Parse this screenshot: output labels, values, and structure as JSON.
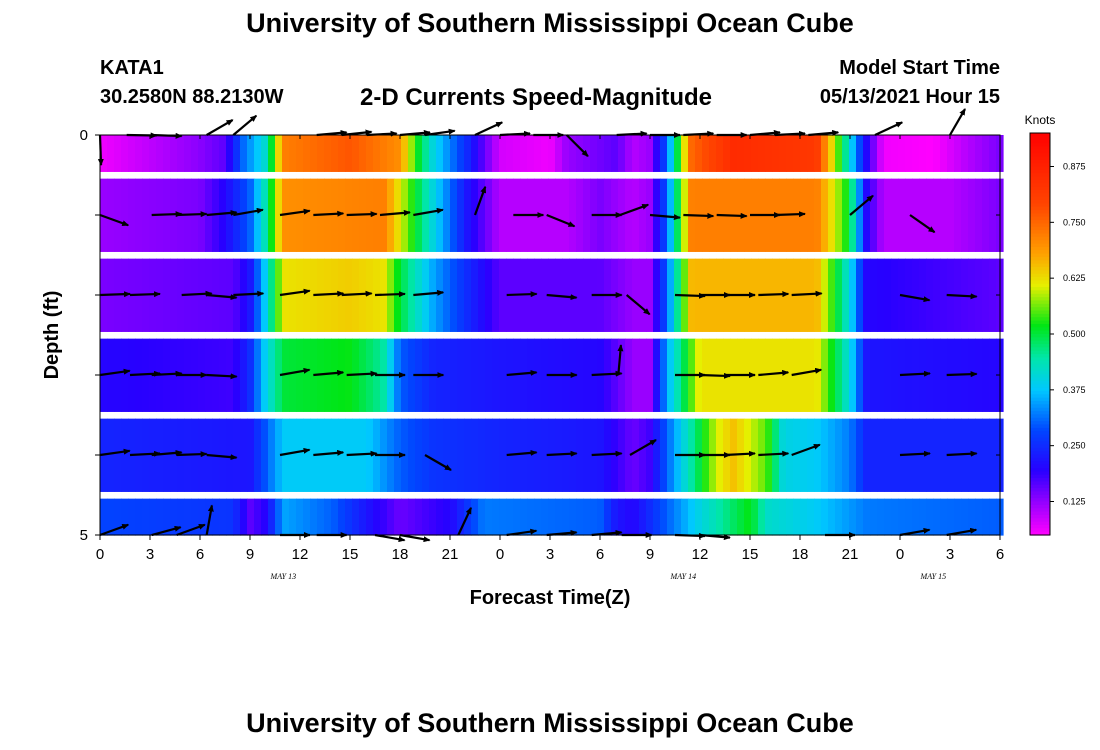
{
  "header": {
    "title": "University of Southern Mississippi Ocean Cube",
    "station_id": "KATA1",
    "coords": "30.2580N  88.2130W",
    "plot_title": "2-D Currents Speed-Magnitude",
    "model_start_label": "Model Start Time",
    "model_start_value": "05/13/2021 Hour 15"
  },
  "footer": {
    "title": "University of Southern Mississippi Ocean Cube"
  },
  "chart_data": {
    "type": "heatmap",
    "title": "2-D Currents Speed-Magnitude",
    "xlabel": "Forecast Time(Z)",
    "ylabel": "Depth (ft)",
    "x_tick_labels": [
      "0",
      "3",
      "6",
      "9",
      "12",
      "15",
      "18",
      "21",
      "0",
      "3",
      "6",
      "9",
      "12",
      "15",
      "18",
      "21",
      "0",
      "3",
      "6"
    ],
    "x_range_hours": [
      0,
      54
    ],
    "date_labels": [
      {
        "text": "MAY 13",
        "hour": 11
      },
      {
        "text": "MAY 14",
        "hour": 35
      },
      {
        "text": "MAY 15",
        "hour": 50
      }
    ],
    "y_tick_labels": [
      {
        "value": 0,
        "label": "0"
      },
      {
        "value": 5,
        "label": "5"
      }
    ],
    "ylim": [
      0,
      5
    ],
    "colorbar": {
      "title": "Knots",
      "ticks": [
        "0.125",
        "0.250",
        "0.375",
        "0.500",
        "0.625",
        "0.750",
        "0.875"
      ],
      "tick_values": [
        0.125,
        0.25,
        0.375,
        0.5,
        0.625,
        0.75,
        0.875
      ],
      "range": [
        0.05,
        0.95
      ]
    },
    "rows": [
      {
        "depth": 0.0,
        "keys": [
          [
            0,
            0.06
          ],
          [
            6,
            0.13
          ],
          [
            7.5,
            0.16
          ],
          [
            8.5,
            0.3
          ],
          [
            10,
            0.42
          ],
          [
            11,
            0.72
          ],
          [
            15,
            0.77
          ],
          [
            18,
            0.7
          ],
          [
            19,
            0.52
          ],
          [
            20,
            0.4
          ],
          [
            22,
            0.25
          ],
          [
            23,
            0.16
          ],
          [
            24,
            0.08
          ],
          [
            27,
            0.06
          ],
          [
            28,
            0.12
          ],
          [
            31,
            0.16
          ],
          [
            32,
            0.1
          ],
          [
            33,
            0.12
          ],
          [
            34,
            0.3
          ],
          [
            35.5,
            0.75
          ],
          [
            38,
            0.85
          ],
          [
            43,
            0.82
          ],
          [
            45,
            0.4
          ],
          [
            46,
            0.2
          ],
          [
            47,
            0.06
          ],
          [
            50,
            0.05
          ],
          [
            52,
            0.1
          ],
          [
            54,
            0.14
          ]
        ]
      },
      {
        "depth": 1.0,
        "keys": [
          [
            0,
            0.12
          ],
          [
            6,
            0.14
          ],
          [
            7.5,
            0.2
          ],
          [
            9,
            0.3
          ],
          [
            10,
            0.45
          ],
          [
            11,
            0.7
          ],
          [
            17,
            0.72
          ],
          [
            19,
            0.5
          ],
          [
            20,
            0.4
          ],
          [
            22,
            0.22
          ],
          [
            24,
            0.1
          ],
          [
            28,
            0.1
          ],
          [
            30,
            0.14
          ],
          [
            32,
            0.1
          ],
          [
            33,
            0.12
          ],
          [
            34,
            0.3
          ],
          [
            35.5,
            0.72
          ],
          [
            43,
            0.72
          ],
          [
            45,
            0.5
          ],
          [
            46,
            0.2
          ],
          [
            47,
            0.1
          ],
          [
            51,
            0.1
          ],
          [
            54,
            0.14
          ]
        ]
      },
      {
        "depth": 2.0,
        "keys": [
          [
            0,
            0.14
          ],
          [
            8,
            0.16
          ],
          [
            9,
            0.22
          ],
          [
            10,
            0.4
          ],
          [
            11,
            0.62
          ],
          [
            15,
            0.64
          ],
          [
            17,
            0.62
          ],
          [
            18,
            0.5
          ],
          [
            20,
            0.35
          ],
          [
            22,
            0.25
          ],
          [
            24,
            0.16
          ],
          [
            30,
            0.16
          ],
          [
            32,
            0.12
          ],
          [
            33,
            0.12
          ],
          [
            34,
            0.3
          ],
          [
            35.5,
            0.66
          ],
          [
            43,
            0.66
          ],
          [
            45,
            0.4
          ],
          [
            46,
            0.2
          ],
          [
            54,
            0.16
          ]
        ]
      },
      {
        "depth": 3.0,
        "keys": [
          [
            0,
            0.2
          ],
          [
            8,
            0.18
          ],
          [
            9,
            0.25
          ],
          [
            10,
            0.4
          ],
          [
            11,
            0.5
          ],
          [
            15,
            0.52
          ],
          [
            17,
            0.45
          ],
          [
            18,
            0.3
          ],
          [
            20,
            0.24
          ],
          [
            24,
            0.22
          ],
          [
            30,
            0.2
          ],
          [
            32,
            0.12
          ],
          [
            33,
            0.12
          ],
          [
            34,
            0.35
          ],
          [
            36,
            0.62
          ],
          [
            43,
            0.62
          ],
          [
            45,
            0.4
          ],
          [
            46,
            0.22
          ],
          [
            54,
            0.2
          ]
        ]
      },
      {
        "depth": 4.0,
        "keys": [
          [
            0,
            0.24
          ],
          [
            9,
            0.22
          ],
          [
            10,
            0.3
          ],
          [
            11,
            0.38
          ],
          [
            16,
            0.38
          ],
          [
            18,
            0.3
          ],
          [
            20,
            0.26
          ],
          [
            24,
            0.24
          ],
          [
            30,
            0.22
          ],
          [
            32,
            0.15
          ],
          [
            33,
            0.18
          ],
          [
            34,
            0.3
          ],
          [
            37,
            0.6
          ],
          [
            38,
            0.65
          ],
          [
            40,
            0.55
          ],
          [
            41,
            0.4
          ],
          [
            43,
            0.38
          ],
          [
            45,
            0.32
          ],
          [
            46,
            0.24
          ],
          [
            54,
            0.24
          ]
        ]
      },
      {
        "depth": 5.0,
        "keys": [
          [
            0,
            0.28
          ],
          [
            8,
            0.26
          ],
          [
            9,
            0.16
          ],
          [
            10,
            0.2
          ],
          [
            11,
            0.35
          ],
          [
            14,
            0.3
          ],
          [
            16,
            0.22
          ],
          [
            18,
            0.15
          ],
          [
            21,
            0.2
          ],
          [
            23,
            0.32
          ],
          [
            30,
            0.3
          ],
          [
            31,
            0.22
          ],
          [
            32,
            0.2
          ],
          [
            34,
            0.3
          ],
          [
            36,
            0.4
          ],
          [
            39,
            0.52
          ],
          [
            40,
            0.42
          ],
          [
            43,
            0.38
          ],
          [
            46,
            0.32
          ],
          [
            54,
            0.3
          ]
        ]
      }
    ],
    "arrows": [
      {
        "depth": 0.0,
        "vectors": [
          [
            0,
            88
          ],
          [
            1.6,
            1
          ],
          [
            3.1,
            2
          ],
          [
            6.4,
            -30
          ],
          [
            8.0,
            -40
          ],
          [
            13.0,
            -5
          ],
          [
            14.5,
            -6
          ],
          [
            16.0,
            -3
          ],
          [
            18.0,
            -5
          ],
          [
            19.5,
            -8
          ],
          [
            22.5,
            -25
          ],
          [
            24.0,
            -3
          ],
          [
            26.0,
            0
          ],
          [
            28.0,
            45
          ],
          [
            31.0,
            -3
          ],
          [
            33.0,
            0
          ],
          [
            35.0,
            -3
          ],
          [
            37.0,
            0
          ],
          [
            39.0,
            -5
          ],
          [
            40.5,
            -3
          ],
          [
            42.5,
            -5
          ],
          [
            46.5,
            -25
          ],
          [
            51.0,
            -60
          ]
        ]
      },
      {
        "depth": 1.0,
        "vectors": [
          [
            0,
            20
          ],
          [
            3.1,
            -2
          ],
          [
            4.6,
            -2
          ],
          [
            6.4,
            -5
          ],
          [
            8.0,
            -10
          ],
          [
            10.8,
            -8
          ],
          [
            12.8,
            -3
          ],
          [
            14.8,
            -2
          ],
          [
            16.8,
            -5
          ],
          [
            18.8,
            -10
          ],
          [
            22.5,
            -70
          ],
          [
            24.8,
            0
          ],
          [
            26.8,
            22
          ],
          [
            29.5,
            0
          ],
          [
            31.2,
            -20
          ],
          [
            33.0,
            5
          ],
          [
            35.0,
            2
          ],
          [
            37.0,
            2
          ],
          [
            39.0,
            0
          ],
          [
            40.5,
            -2
          ],
          [
            45.0,
            -40
          ],
          [
            48.6,
            35
          ]
        ]
      },
      {
        "depth": 2.0,
        "vectors": [
          [
            0,
            -2
          ],
          [
            1.8,
            -2
          ],
          [
            4.9,
            -3
          ],
          [
            6.4,
            5
          ],
          [
            8.0,
            -3
          ],
          [
            10.8,
            -8
          ],
          [
            12.8,
            -3
          ],
          [
            14.5,
            -3
          ],
          [
            16.5,
            -2
          ],
          [
            18.8,
            -5
          ],
          [
            24.4,
            -2
          ],
          [
            26.8,
            5
          ],
          [
            29.5,
            0
          ],
          [
            31.6,
            40
          ],
          [
            34.5,
            2
          ],
          [
            36.0,
            0
          ],
          [
            37.5,
            0
          ],
          [
            39.5,
            -2
          ],
          [
            41.5,
            -3
          ],
          [
            48.0,
            10
          ],
          [
            50.8,
            3
          ]
        ]
      },
      {
        "depth": 3.0,
        "vectors": [
          [
            0,
            -8
          ],
          [
            1.8,
            -3
          ],
          [
            3.1,
            -3
          ],
          [
            4.6,
            0
          ],
          [
            6.4,
            3
          ],
          [
            10.8,
            -10
          ],
          [
            12.8,
            -5
          ],
          [
            14.8,
            -3
          ],
          [
            16.5,
            0
          ],
          [
            18.8,
            0
          ],
          [
            24.4,
            -5
          ],
          [
            26.8,
            0
          ],
          [
            29.5,
            -3
          ],
          [
            31.1,
            -85
          ],
          [
            34.5,
            0
          ],
          [
            36.0,
            2
          ],
          [
            37.5,
            0
          ],
          [
            39.5,
            -5
          ],
          [
            41.5,
            -10
          ],
          [
            48.0,
            -3
          ],
          [
            50.8,
            -2
          ]
        ]
      },
      {
        "depth": 4.0,
        "vectors": [
          [
            0,
            -8
          ],
          [
            1.8,
            -3
          ],
          [
            3.1,
            -5
          ],
          [
            4.6,
            -2
          ],
          [
            6.4,
            5
          ],
          [
            10.8,
            -10
          ],
          [
            12.8,
            -5
          ],
          [
            14.8,
            -3
          ],
          [
            16.5,
            0
          ],
          [
            19.5,
            30
          ],
          [
            24.4,
            -5
          ],
          [
            26.8,
            -3
          ],
          [
            29.5,
            -3
          ],
          [
            31.8,
            -30
          ],
          [
            34.5,
            0
          ],
          [
            36.0,
            0
          ],
          [
            37.5,
            -3
          ],
          [
            39.5,
            -3
          ],
          [
            41.5,
            -20
          ],
          [
            48.0,
            -3
          ],
          [
            50.8,
            -3
          ]
        ]
      },
      {
        "depth": 5.0,
        "vectors": [
          [
            0,
            -20
          ],
          [
            3.1,
            -15
          ],
          [
            4.6,
            -20
          ],
          [
            6.4,
            -80
          ],
          [
            10.8,
            0
          ],
          [
            13.0,
            0
          ],
          [
            16.5,
            10
          ],
          [
            18.0,
            10
          ],
          [
            21.5,
            -65
          ],
          [
            24.4,
            -8
          ],
          [
            26.8,
            -5
          ],
          [
            29.5,
            -5
          ],
          [
            31.3,
            0
          ],
          [
            34.5,
            2
          ],
          [
            36.0,
            5
          ],
          [
            43.5,
            0
          ],
          [
            48.0,
            -10
          ],
          [
            50.8,
            -10
          ]
        ]
      }
    ]
  }
}
